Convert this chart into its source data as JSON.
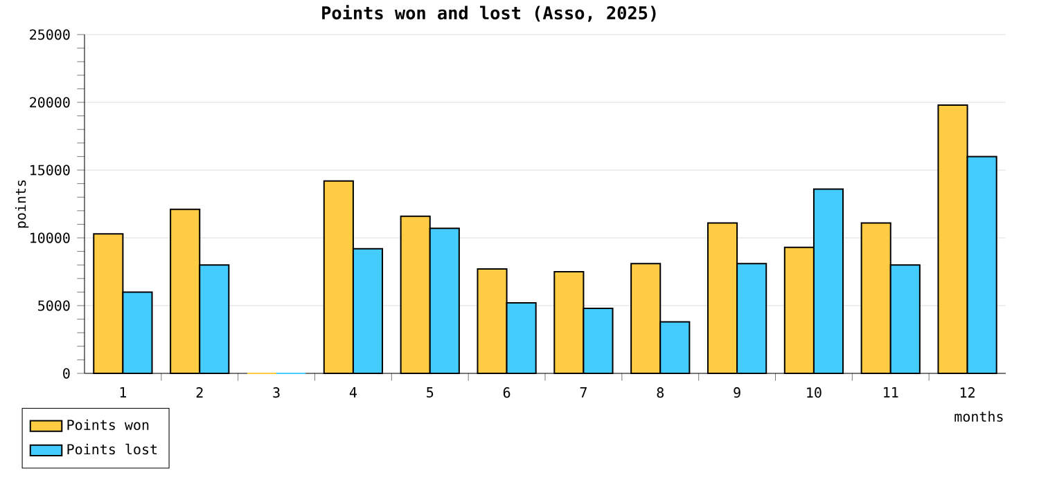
{
  "chart_data": {
    "type": "bar",
    "title": "Points won and lost (Asso, 2025)",
    "xlabel": "months",
    "ylabel": "points",
    "categories": [
      "1",
      "2",
      "3",
      "4",
      "5",
      "6",
      "7",
      "8",
      "9",
      "10",
      "11",
      "12"
    ],
    "series": [
      {
        "name": "Points won",
        "color": "#ffcc44",
        "values": [
          10300,
          12100,
          0,
          14200,
          11600,
          7700,
          7500,
          8100,
          11100,
          9300,
          11100,
          19800
        ]
      },
      {
        "name": "Points lost",
        "color": "#44ccff",
        "values": [
          6000,
          8000,
          0,
          9200,
          10700,
          5200,
          4800,
          3800,
          8100,
          13600,
          8000,
          16000
        ]
      }
    ],
    "ylim": [
      0,
      25000
    ],
    "yticks": [
      0,
      5000,
      10000,
      15000,
      20000,
      25000
    ],
    "grid": "y",
    "legend": "bottom left"
  }
}
